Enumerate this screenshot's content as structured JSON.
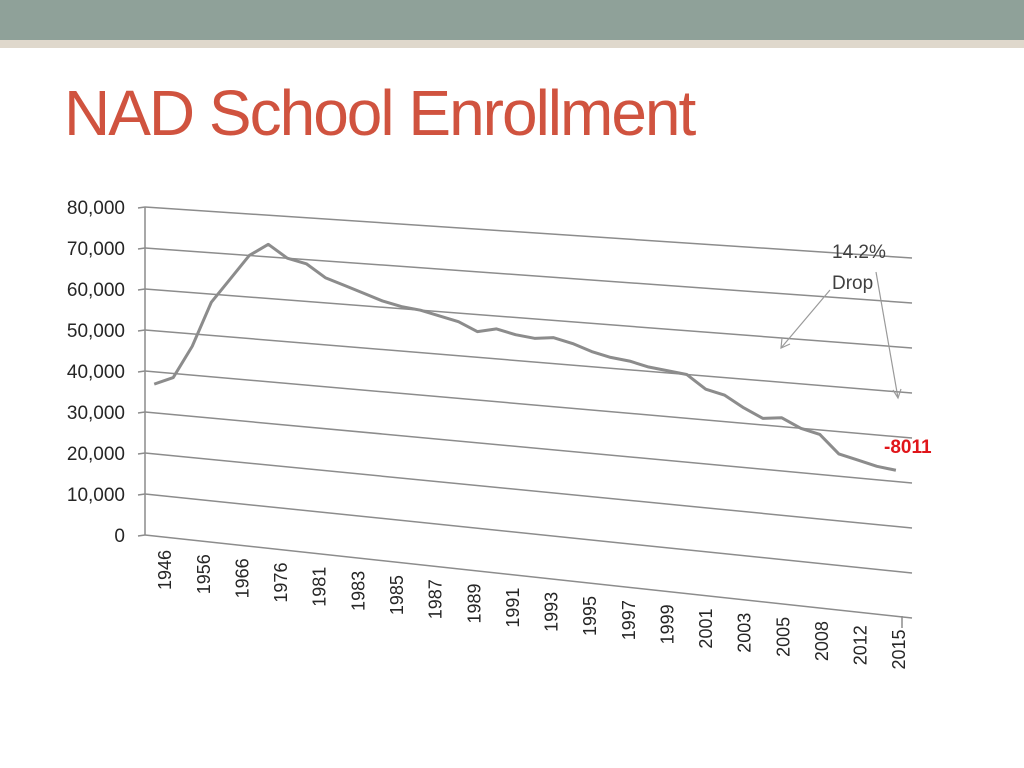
{
  "slide": {
    "title": "NAD School Enrollment",
    "colors": {
      "band": "#8fa199",
      "stripe": "#dfd8cc",
      "title": "#d0533f",
      "line": "#8c8c8c",
      "delta": "#e0151a"
    }
  },
  "annotations": {
    "drop_percent": "14.2%",
    "drop_word": "Drop",
    "delta": "-8011"
  },
  "chart_data": {
    "type": "line",
    "title": "",
    "xlabel": "",
    "ylabel": "",
    "ylim": [
      0,
      80000
    ],
    "yticks": [
      "0",
      "10,000",
      "20,000",
      "30,000",
      "40,000",
      "50,000",
      "60,000",
      "70,000",
      "80,000"
    ],
    "grid": true,
    "legend": "none",
    "x_tick_labels": [
      "1946",
      "1956",
      "1966",
      "1976",
      "1981",
      "1983",
      "1985",
      "1987",
      "1989",
      "1991",
      "1993",
      "1995",
      "1997",
      "1999",
      "2001",
      "2003",
      "2005",
      "2008",
      "2012",
      "2015"
    ],
    "series": [
      {
        "values": [
          37000,
          39000,
          47000,
          58000,
          64000,
          70000,
          73000,
          70000,
          69000,
          66000,
          64500,
          63000,
          61500,
          60500,
          60000,
          59000,
          58000,
          56000,
          57000,
          56000,
          55500,
          56000,
          55000,
          53500,
          52500,
          52000,
          51000,
          50500,
          50000,
          47000,
          46000,
          43500,
          41500,
          42000,
          40000,
          39000,
          35000,
          34000,
          33000,
          32500
        ]
      }
    ]
  }
}
